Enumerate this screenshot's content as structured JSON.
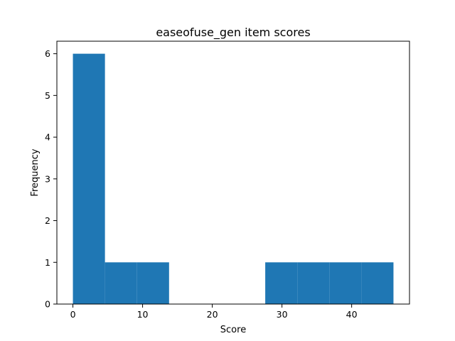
{
  "chart_data": {
    "type": "bar",
    "title": "easeofuse_gen item scores",
    "xlabel": "Score",
    "ylabel": "Frequency",
    "xlim": [
      -2.3,
      48.3
    ],
    "ylim": [
      0,
      6.3
    ],
    "xticks": [
      0,
      10,
      20,
      30,
      40
    ],
    "yticks": [
      0,
      1,
      2,
      3,
      4,
      5,
      6
    ],
    "bins": [
      {
        "x0": 0,
        "x1": 4.6,
        "count": 6
      },
      {
        "x0": 4.6,
        "x1": 9.2,
        "count": 1
      },
      {
        "x0": 9.2,
        "x1": 13.8,
        "count": 1
      },
      {
        "x0": 13.8,
        "x1": 18.4,
        "count": 0
      },
      {
        "x0": 18.4,
        "x1": 23.0,
        "count": 0
      },
      {
        "x0": 23.0,
        "x1": 27.6,
        "count": 0
      },
      {
        "x0": 27.6,
        "x1": 32.2,
        "count": 1
      },
      {
        "x0": 32.2,
        "x1": 36.8,
        "count": 1
      },
      {
        "x0": 36.8,
        "x1": 41.4,
        "count": 1
      },
      {
        "x0": 41.4,
        "x1": 46.0,
        "count": 1
      }
    ],
    "bar_color": "#1f77b4",
    "grid": false,
    "legend": "none"
  }
}
